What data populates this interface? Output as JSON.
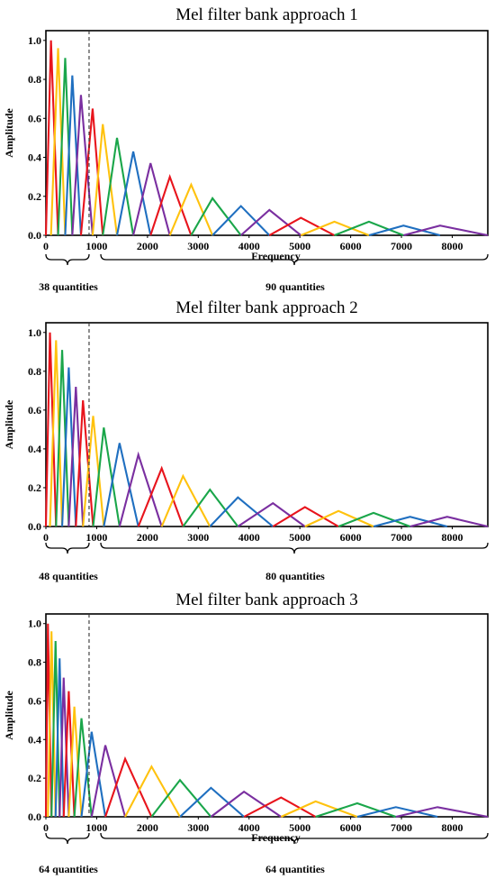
{
  "colors": [
    "#e8141c",
    "#ffc20e",
    "#1aa64a",
    "#1f6fc0",
    "#7a2fa0"
  ],
  "chart_data": [
    {
      "type": "line",
      "title": "Mel filter bank approach 1",
      "xlabel": "Frequency",
      "ylabel": "Amplitude",
      "xlim": [
        0,
        8700
      ],
      "ylim": [
        0,
        1.05
      ],
      "xticks": [
        "0",
        "1000",
        "2000",
        "3000",
        "4000",
        "5000",
        "6000",
        "7000",
        "8000"
      ],
      "yticks": [
        "0.0",
        "0.2",
        "0.4",
        "0.6",
        "0.8",
        "1.0"
      ],
      "split_frequency": 850,
      "low_band_label": "38 quantities",
      "high_band_label": "90 quantities",
      "peaks": [
        {
          "f": 100,
          "a": 1.0
        },
        {
          "f": 240,
          "a": 0.96
        },
        {
          "f": 380,
          "a": 0.91
        },
        {
          "f": 520,
          "a": 0.82
        },
        {
          "f": 690,
          "a": 0.72
        },
        {
          "f": 920,
          "a": 0.65
        },
        {
          "f": 1120,
          "a": 0.57
        },
        {
          "f": 1400,
          "a": 0.5
        },
        {
          "f": 1720,
          "a": 0.43
        },
        {
          "f": 2060,
          "a": 0.37
        },
        {
          "f": 2440,
          "a": 0.3
        },
        {
          "f": 2860,
          "a": 0.26
        },
        {
          "f": 3280,
          "a": 0.19
        },
        {
          "f": 3840,
          "a": 0.15
        },
        {
          "f": 4400,
          "a": 0.13
        },
        {
          "f": 5020,
          "a": 0.09
        },
        {
          "f": 5680,
          "a": 0.07
        },
        {
          "f": 6360,
          "a": 0.07
        },
        {
          "f": 7040,
          "a": 0.05
        },
        {
          "f": 7760,
          "a": 0.05
        }
      ]
    },
    {
      "type": "line",
      "title": "Mel filter bank approach 2",
      "xlabel": "",
      "ylabel": "Amplitude",
      "xlim": [
        0,
        8700
      ],
      "ylim": [
        0,
        1.05
      ],
      "xticks": [
        "0",
        "1000",
        "2000",
        "3000",
        "4000",
        "5000",
        "6000",
        "7000",
        "8000"
      ],
      "yticks": [
        "0.0",
        "0.2",
        "0.4",
        "0.6",
        "0.8",
        "1.0"
      ],
      "split_frequency": 850,
      "low_band_label": "48 quantities",
      "high_band_label": "80 quantities",
      "peaks": [
        {
          "f": 80,
          "a": 1.0
        },
        {
          "f": 200,
          "a": 0.96
        },
        {
          "f": 320,
          "a": 0.91
        },
        {
          "f": 450,
          "a": 0.82
        },
        {
          "f": 590,
          "a": 0.72
        },
        {
          "f": 730,
          "a": 0.65
        },
        {
          "f": 930,
          "a": 0.57
        },
        {
          "f": 1140,
          "a": 0.51
        },
        {
          "f": 1450,
          "a": 0.43
        },
        {
          "f": 1820,
          "a": 0.37
        },
        {
          "f": 2280,
          "a": 0.3
        },
        {
          "f": 2700,
          "a": 0.26
        },
        {
          "f": 3230,
          "a": 0.19
        },
        {
          "f": 3780,
          "a": 0.15
        },
        {
          "f": 4470,
          "a": 0.12
        },
        {
          "f": 5100,
          "a": 0.1
        },
        {
          "f": 5760,
          "a": 0.08
        },
        {
          "f": 6450,
          "a": 0.07
        },
        {
          "f": 7170,
          "a": 0.05
        },
        {
          "f": 7900,
          "a": 0.05
        }
      ]
    },
    {
      "type": "line",
      "title": "Mel filter bank approach 3",
      "xlabel": "Frequency",
      "ylabel": "Amplitude",
      "xlim": [
        0,
        8700
      ],
      "ylim": [
        0,
        1.05
      ],
      "xticks": [
        "0",
        "1000",
        "2000",
        "3000",
        "4000",
        "5000",
        "6000",
        "7000",
        "8000"
      ],
      "yticks": [
        "0.0",
        "0.2",
        "0.4",
        "0.6",
        "0.8",
        "1.0"
      ],
      "split_frequency": 850,
      "low_band_label": "64 quantities",
      "high_band_label": "64 quantities",
      "peaks": [
        {
          "f": 40,
          "a": 1.0
        },
        {
          "f": 110,
          "a": 0.96
        },
        {
          "f": 190,
          "a": 0.91
        },
        {
          "f": 270,
          "a": 0.82
        },
        {
          "f": 350,
          "a": 0.72
        },
        {
          "f": 450,
          "a": 0.65
        },
        {
          "f": 560,
          "a": 0.57
        },
        {
          "f": 700,
          "a": 0.51
        },
        {
          "f": 900,
          "a": 0.44
        },
        {
          "f": 1170,
          "a": 0.37
        },
        {
          "f": 1560,
          "a": 0.3
        },
        {
          "f": 2080,
          "a": 0.26
        },
        {
          "f": 2640,
          "a": 0.19
        },
        {
          "f": 3250,
          "a": 0.15
        },
        {
          "f": 3900,
          "a": 0.13
        },
        {
          "f": 4630,
          "a": 0.1
        },
        {
          "f": 5310,
          "a": 0.08
        },
        {
          "f": 6130,
          "a": 0.07
        },
        {
          "f": 6890,
          "a": 0.05
        },
        {
          "f": 7710,
          "a": 0.05
        }
      ]
    }
  ]
}
